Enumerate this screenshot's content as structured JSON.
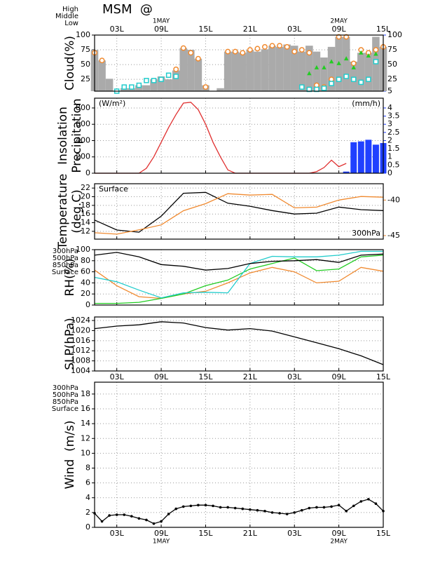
{
  "title": "MSM  @",
  "x_axis": {
    "xlim": [
      0,
      39
    ],
    "xticks": [
      {
        "value": 3,
        "label": "03L"
      },
      {
        "value": 9,
        "label": "09L"
      },
      {
        "value": 15,
        "label": "15L"
      },
      {
        "value": 21,
        "label": "21L"
      },
      {
        "value": 27,
        "label": "03L"
      },
      {
        "value": 33,
        "label": "09L"
      },
      {
        "value": 39,
        "label": "15L"
      }
    ],
    "dates": [
      {
        "value": 9,
        "label": "1MAY"
      },
      {
        "value": 33,
        "label": "2MAY"
      }
    ]
  },
  "chart_data": [
    {
      "type": "bar",
      "ylabel": [
        "Cloud(%)"
      ],
      "ylim": [
        5,
        100
      ],
      "yticks": [
        25,
        50,
        75,
        100
      ],
      "y2lim": [
        5,
        100
      ],
      "y2ticks": [
        5,
        25,
        50,
        75,
        100
      ],
      "y2_color": "#2040ff",
      "grid": true,
      "xtick_labels": "top",
      "series": [
        {
          "type": "bar",
          "color": "#aaaaaa",
          "x": [
            0,
            1,
            2,
            3,
            4,
            5,
            6,
            7,
            8,
            9,
            10,
            11,
            12,
            13,
            14,
            15,
            16,
            17,
            18,
            19,
            20,
            21,
            22,
            23,
            24,
            25,
            26,
            27,
            28,
            29,
            30,
            31,
            32,
            33,
            34,
            35,
            36,
            37,
            38,
            39
          ],
          "values": [
            75,
            57,
            26,
            5,
            10,
            10,
            15,
            15,
            25,
            30,
            25,
            40,
            78,
            75,
            60,
            15,
            5,
            10,
            72,
            72,
            70,
            75,
            72,
            76,
            82,
            80,
            84,
            82,
            72,
            82,
            72,
            62,
            80,
            97,
            97,
            55,
            70,
            70,
            97,
            80
          ]
        },
        {
          "type": "circle",
          "name": "High",
          "color": "#f08a30",
          "x": [
            0,
            1,
            2,
            3,
            4,
            5,
            6,
            7,
            8,
            9,
            10,
            11,
            12,
            13,
            14,
            15,
            16,
            17,
            18,
            19,
            20,
            21,
            22,
            23,
            24,
            25,
            26,
            27,
            28,
            29,
            30,
            31,
            32,
            33,
            34,
            35,
            36,
            37,
            38,
            39
          ],
          "values": [
            70,
            57,
            null,
            null,
            null,
            null,
            null,
            null,
            null,
            null,
            null,
            42,
            78,
            70,
            60,
            12,
            null,
            null,
            72,
            72,
            70,
            75,
            77,
            80,
            82,
            82,
            80,
            72,
            75,
            70,
            15,
            12,
            25,
            97,
            97,
            52,
            75,
            70,
            75,
            80
          ]
        },
        {
          "type": "triangle",
          "name": "Middle",
          "color": "#22cc22",
          "x": [
            0,
            1,
            2,
            3,
            4,
            5,
            6,
            7,
            8,
            9,
            10,
            11,
            12,
            13,
            14,
            15,
            16,
            17,
            18,
            19,
            20,
            21,
            22,
            23,
            24,
            25,
            26,
            27,
            28,
            29,
            30,
            31,
            32,
            33,
            34,
            35,
            36,
            37,
            38,
            39
          ],
          "values": [
            null,
            null,
            null,
            null,
            null,
            null,
            null,
            null,
            null,
            null,
            null,
            null,
            null,
            null,
            null,
            null,
            null,
            null,
            null,
            null,
            null,
            null,
            null,
            null,
            null,
            null,
            null,
            null,
            null,
            35,
            45,
            45,
            55,
            52,
            60,
            45,
            70,
            65,
            68,
            null
          ]
        },
        {
          "type": "square",
          "name": "Low",
          "color": "#22cccc",
          "x": [
            0,
            1,
            2,
            3,
            4,
            5,
            6,
            7,
            8,
            9,
            10,
            11,
            12,
            13,
            14,
            15,
            16,
            17,
            18,
            19,
            20,
            21,
            22,
            23,
            24,
            25,
            26,
            27,
            28,
            29,
            30,
            31,
            32,
            33,
            34,
            35,
            36,
            37,
            38,
            39
          ],
          "values": [
            null,
            null,
            null,
            5,
            12,
            12,
            15,
            23,
            23,
            25,
            32,
            30,
            null,
            null,
            null,
            null,
            null,
            null,
            null,
            null,
            null,
            null,
            null,
            null,
            null,
            null,
            null,
            null,
            12,
            8,
            8,
            10,
            18,
            25,
            30,
            25,
            20,
            25,
            55,
            null
          ]
        }
      ]
    },
    {
      "type": "line",
      "ylabel": [
        "Insolation",
        "Precipitation"
      ],
      "ylim": [
        0,
        920
      ],
      "yticks": [
        0,
        200,
        400,
        600,
        800
      ],
      "y2lim": [
        0,
        4.6
      ],
      "y2ticks": [
        0,
        0.5,
        1,
        1.5,
        2,
        2.5,
        3,
        3.5,
        4
      ],
      "y2_color": "#2040ff",
      "grid": true,
      "y_unit": "(W/m²)",
      "y_unit_color": "#e03030",
      "y2_unit": "(mm/h)",
      "series": [
        {
          "type": "line",
          "color": "#e03030",
          "x": [
            0,
            1,
            2,
            3,
            4,
            5,
            6,
            7,
            8,
            9,
            10,
            11,
            12,
            13,
            14,
            15,
            16,
            17,
            18,
            19,
            20,
            21,
            22,
            23,
            24,
            25,
            26,
            27,
            28,
            29,
            30,
            31,
            32,
            33,
            34
          ],
          "values": [
            0,
            0,
            0,
            0,
            0,
            0,
            0,
            60,
            200,
            380,
            560,
            720,
            860,
            870,
            780,
            600,
            380,
            200,
            40,
            0,
            0,
            0,
            0,
            0,
            0,
            0,
            0,
            0,
            0,
            0,
            20,
            70,
            160,
            80,
            120
          ]
        },
        {
          "type": "bar",
          "axis": "y2",
          "color": "#2040ff",
          "x": [
            34,
            35,
            36,
            37,
            38,
            39
          ],
          "values": [
            0.1,
            1.9,
            1.95,
            2.05,
            1.75,
            1.85
          ]
        }
      ]
    },
    {
      "type": "line",
      "ylabel": [
        "Temperature",
        "(deg.C)"
      ],
      "ylim": [
        10.2,
        23
      ],
      "yticks": [
        12,
        14,
        16,
        18,
        20,
        22
      ],
      "y2lim": [
        -45.5,
        -37.7
      ],
      "y2ticks": [
        -45,
        -40
      ],
      "y2_color": "#f08a30",
      "grid": true,
      "series": [
        {
          "type": "line",
          "name": "Surface",
          "label_corner": "top-left",
          "color": "#000000",
          "x": [
            0,
            3,
            6,
            9,
            12,
            15,
            18,
            21,
            24,
            27,
            30,
            33,
            36,
            39
          ],
          "values": [
            14.6,
            12.3,
            11.8,
            15.5,
            20.8,
            21.0,
            18.5,
            17.8,
            16.8,
            16.0,
            16.2,
            17.6,
            17.0,
            16.8
          ]
        },
        {
          "type": "line",
          "name": "300hPa",
          "label_corner": "bottom-right",
          "axis": "y2",
          "color": "#f08a30",
          "x": [
            0,
            3,
            6,
            9,
            12,
            15,
            18,
            21,
            24,
            27,
            30,
            33,
            36,
            39
          ],
          "values": [
            -44.6,
            -44.8,
            -44.2,
            -43.5,
            -41.5,
            -40.5,
            -39.1,
            -39.3,
            -39.2,
            -41.1,
            -41.0,
            -40.0,
            -39.5,
            -39.6
          ]
        }
      ]
    },
    {
      "type": "line",
      "ylabel": [
        "RH(%)"
      ],
      "ylim": [
        0,
        100
      ],
      "yticks": [
        0,
        20,
        40,
        60,
        80,
        100
      ],
      "grid": true,
      "series": [
        {
          "type": "line",
          "name": "300hPa",
          "color": "#f08a30",
          "x": [
            0,
            3,
            6,
            9,
            12,
            15,
            18,
            21,
            24,
            27,
            30,
            33,
            36,
            39
          ],
          "values": [
            63,
            35,
            15,
            12,
            20,
            25,
            40,
            58,
            68,
            60,
            40,
            43,
            68,
            61
          ]
        },
        {
          "type": "line",
          "name": "500hPa",
          "color": "#22cc22",
          "x": [
            0,
            3,
            6,
            9,
            12,
            15,
            18,
            21,
            24,
            27,
            30,
            33,
            36,
            39
          ],
          "values": [
            3,
            3,
            5,
            12,
            20,
            35,
            45,
            65,
            75,
            85,
            62,
            65,
            87,
            90
          ]
        },
        {
          "type": "line",
          "name": "850hPa",
          "color": "#22cccc",
          "x": [
            0,
            3,
            6,
            9,
            12,
            15,
            18,
            21,
            24,
            27,
            30,
            33,
            36,
            39
          ],
          "values": [
            50,
            42,
            27,
            13,
            22,
            23,
            22,
            75,
            88,
            87,
            87,
            90,
            97,
            97
          ]
        },
        {
          "type": "line",
          "name": "Surface",
          "color": "#000000",
          "x": [
            0,
            3,
            6,
            9,
            12,
            15,
            18,
            21,
            24,
            27,
            30,
            33,
            36,
            39
          ],
          "values": [
            90,
            95,
            87,
            73,
            70,
            63,
            66,
            75,
            79,
            80,
            82,
            77,
            90,
            92
          ]
        }
      ]
    },
    {
      "type": "line",
      "ylabel": [
        "SLP(hPa)"
      ],
      "ylim": [
        1004,
        1025.4
      ],
      "yticks": [
        1004,
        1008,
        1012,
        1016,
        1020,
        1024
      ],
      "grid": true,
      "xtick_labels": "bottom",
      "series": [
        {
          "type": "line",
          "color": "#000000",
          "x": [
            0,
            3,
            6,
            9,
            12,
            15,
            18,
            21,
            24,
            27,
            30,
            33,
            36,
            39
          ],
          "values": [
            1020.8,
            1021.8,
            1022.3,
            1023.5,
            1023.0,
            1021.2,
            1020.2,
            1020.8,
            1019.8,
            1017.5,
            1015.2,
            1012.8,
            1010.0,
            1006.5
          ]
        }
      ]
    },
    {
      "type": "line",
      "ylabel": [
        "Wind  (m/s)"
      ],
      "ylim": [
        0,
        19.6
      ],
      "yticks": [
        0,
        2,
        4,
        6,
        8,
        10,
        12,
        14,
        16,
        18
      ],
      "grid": true,
      "xtick_labels": "bottom",
      "barb_levels": [
        {
          "name": "300hPa",
          "color": "#f08a30"
        },
        {
          "name": "500hPa",
          "color": "#22cc22"
        },
        {
          "name": "850hPa",
          "color": "#22cccc"
        }
      ],
      "series": [
        {
          "type": "line-dots",
          "name": "Surface",
          "color": "#000000",
          "x": [
            0,
            1,
            2,
            3,
            4,
            5,
            6,
            7,
            8,
            9,
            10,
            11,
            12,
            13,
            14,
            15,
            16,
            17,
            18,
            19,
            20,
            21,
            22,
            23,
            24,
            25,
            26,
            27,
            28,
            29,
            30,
            31,
            32,
            33,
            34,
            35,
            36,
            37,
            38,
            39
          ],
          "values": [
            1.9,
            0.8,
            1.6,
            1.7,
            1.7,
            1.5,
            1.2,
            1.0,
            0.5,
            0.8,
            1.8,
            2.5,
            2.8,
            2.9,
            3.0,
            3.0,
            2.9,
            2.7,
            2.7,
            2.6,
            2.5,
            2.4,
            2.3,
            2.2,
            2.0,
            1.9,
            1.8,
            2.0,
            2.3,
            2.6,
            2.7,
            2.7,
            2.8,
            3.0,
            2.2,
            2.9,
            3.5,
            3.8,
            3.2,
            2.2
          ]
        }
      ]
    }
  ]
}
